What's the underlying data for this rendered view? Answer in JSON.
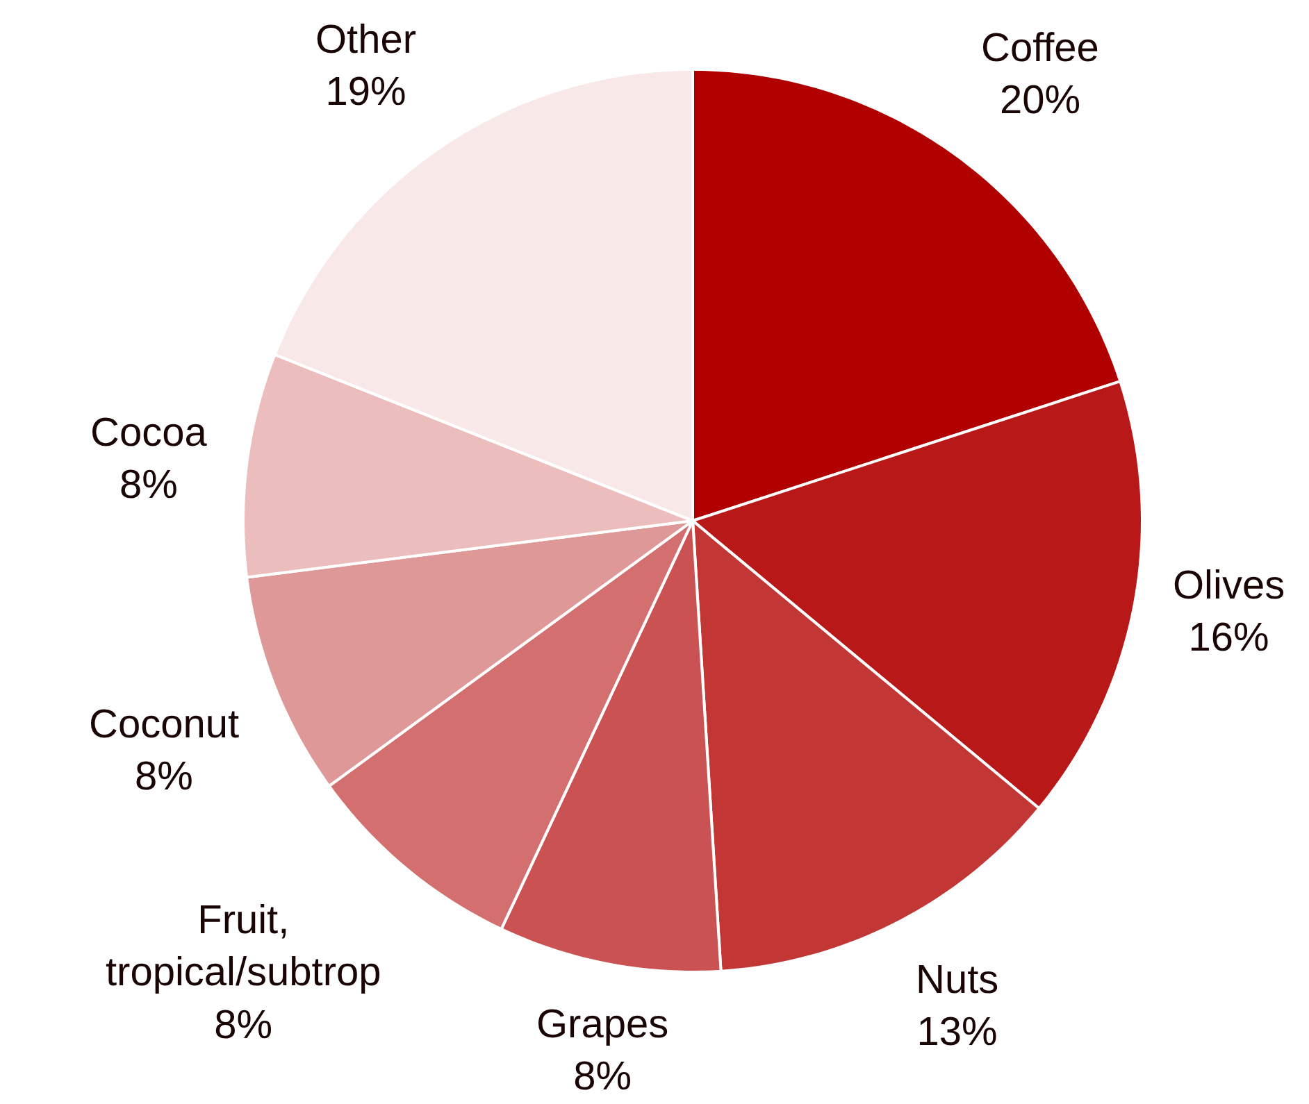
{
  "chart_data": {
    "type": "pie",
    "categories": [
      "Coffee",
      "Olives",
      "Nuts",
      "Grapes",
      "Fruit, tropical/subtrop",
      "Coconut",
      "Cocoa",
      "Other"
    ],
    "values": [
      20,
      16,
      13,
      8,
      8,
      8,
      8,
      19
    ],
    "value_labels": [
      "20%",
      "16%",
      "13%",
      "8%",
      "8%",
      "8%",
      "8%",
      "19%"
    ],
    "colors": [
      "#b00000",
      "#b91818",
      "#c23636",
      "#ca5252",
      "#d46f6f",
      "#de9898",
      "#ecbdbd",
      "#f8e8e8"
    ],
    "legend": false
  }
}
